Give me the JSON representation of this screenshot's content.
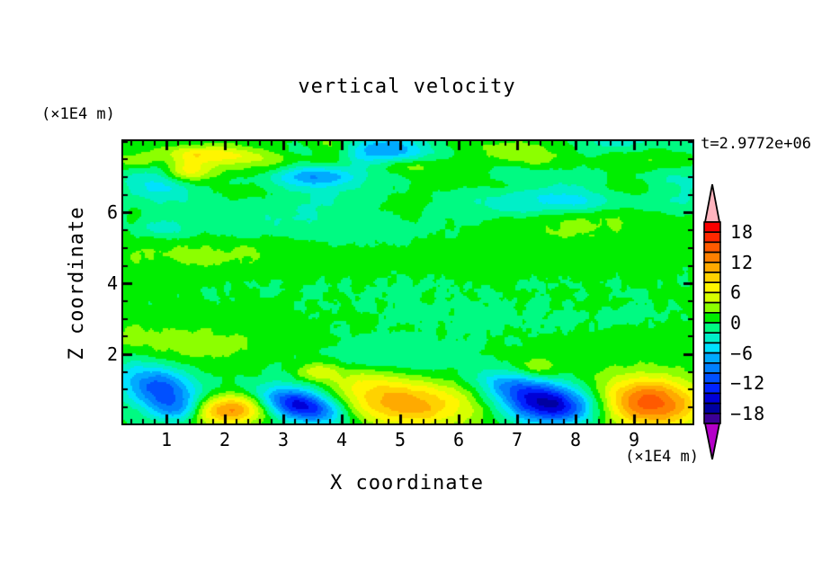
{
  "chart_data": {
    "type": "filled_contour",
    "title": "vertical velocity",
    "xlabel": "X coordinate",
    "ylabel": "Z coordinate",
    "x_unit_label": "(×1E4 m)",
    "z_unit_label": "(×1E4 m)",
    "time_label": "t=2.9772e+06",
    "x_range": [
      0.26,
      10.0
    ],
    "z_range": [
      0.04,
      8.02
    ],
    "x_major_ticks": [
      1,
      2,
      3,
      4,
      5,
      6,
      7,
      8,
      9
    ],
    "x_major_tick_labels": [
      "1",
      "2",
      "3",
      "4",
      "5",
      "6",
      "7",
      "8",
      "9"
    ],
    "x_minor_step": 0.2,
    "z_major_ticks": [
      2,
      4,
      6
    ],
    "z_major_tick_labels": [
      "2",
      "4",
      "6"
    ],
    "z_minor_step": 0.5,
    "grid": false,
    "legend_position": "right-colorbar",
    "levels": {
      "min": -20,
      "max": 20,
      "step": 2
    },
    "colorbar_label_values": [
      18,
      12,
      6,
      0,
      -6,
      -12,
      -18
    ],
    "colorbar_labels": [
      "18",
      "12",
      "6",
      "0",
      "−6",
      "−12",
      "−18"
    ],
    "palette": [
      "#3C0096",
      "#0000A0",
      "#0000D7",
      "#0023FF",
      "#0050FF",
      "#0080FF",
      "#00AAFF",
      "#00E1FF",
      "#00EFC8",
      "#00FA82",
      "#00EE00",
      "#8CFF00",
      "#D7FF00",
      "#FFF500",
      "#FFD200",
      "#FFAA00",
      "#FF8000",
      "#FF5A00",
      "#FF2800",
      "#FA0000"
    ],
    "over_arrow_color": "#FFB4BE",
    "under_arrow_color": "#B400C8",
    "field": {
      "description": "vertical velocity w(x,z); strong convective plumes near bottom boundary, weak banded motion in interior, fine-grained turbulence near top",
      "base": {
        "low": 0.45,
        "high": 0.12,
        "z_split": 1.9,
        "blend_width": 0.45
      },
      "features": [
        {
          "x": 1.0,
          "z": 0.95,
          "sx": 0.42,
          "sz": 0.45,
          "amp": -9.5,
          "tilt": 0.3
        },
        {
          "x": 1.17,
          "z": 0.4,
          "sx": 0.3,
          "sz": 0.24,
          "amp": -5.5,
          "tilt": 0
        },
        {
          "x": 0.52,
          "z": 1.25,
          "sx": 0.42,
          "sz": 0.55,
          "amp": -3.4,
          "tilt": 0.2
        },
        {
          "x": 2.07,
          "z": 0.42,
          "sx": 0.46,
          "sz": 0.3,
          "amp": 12.6,
          "tilt": -0.2
        },
        {
          "x": 3.3,
          "z": 0.55,
          "sx": 0.46,
          "sz": 0.36,
          "amp": -16.5,
          "tilt": 0.55
        },
        {
          "x": 3.58,
          "z": 1.52,
          "sx": 0.24,
          "sz": 0.18,
          "amp": 4.8,
          "tilt": 0
        },
        {
          "x": 5.12,
          "z": 0.58,
          "sx": 0.82,
          "sz": 0.46,
          "amp": 10.8,
          "tilt": 0.15
        },
        {
          "x": 4.35,
          "z": 1.25,
          "sx": 0.5,
          "sz": 0.35,
          "amp": 3.2,
          "tilt": 0.3
        },
        {
          "x": 7.55,
          "z": 0.58,
          "sx": 0.55,
          "sz": 0.4,
          "amp": -17.0,
          "tilt": 0.2
        },
        {
          "x": 6.88,
          "z": 1.12,
          "sx": 0.42,
          "sz": 0.3,
          "amp": -6.5,
          "tilt": 0.35
        },
        {
          "x": 7.35,
          "z": 1.62,
          "sx": 0.3,
          "sz": 0.22,
          "amp": 3.4,
          "tilt": 0
        },
        {
          "x": 9.28,
          "z": 0.62,
          "sx": 0.62,
          "sz": 0.52,
          "amp": 14.8,
          "tilt": 0.1
        },
        {
          "x": 0.9,
          "z": 5.55,
          "sx": 0.28,
          "sz": 0.18,
          "amp": -3.0,
          "tilt": 0
        },
        {
          "x": 4.55,
          "z": 7.55,
          "sx": 0.85,
          "sz": 0.26,
          "amp": -5.2,
          "tilt": 0
        },
        {
          "x": 7.8,
          "z": 6.35,
          "sx": 0.95,
          "sz": 0.28,
          "amp": -4.6,
          "tilt": 0
        },
        {
          "x": 1.35,
          "z": 7.15,
          "sx": 0.3,
          "sz": 0.22,
          "amp": 6.5,
          "tilt": 0
        },
        {
          "x": 6.9,
          "z": 7.75,
          "sx": 0.48,
          "sz": 0.24,
          "amp": 5.2,
          "tilt": 0
        },
        {
          "x": 2.75,
          "z": 7.2,
          "sx": 0.5,
          "sz": 0.3,
          "amp": 4.5,
          "tilt": 0
        },
        {
          "x": 0.95,
          "z": 6.85,
          "sx": 0.45,
          "sz": 0.4,
          "amp": -5.0,
          "tilt": 0
        },
        {
          "x": 3.6,
          "z": 6.9,
          "sx": 0.5,
          "sz": 0.35,
          "amp": -4.2,
          "tilt": 0
        }
      ],
      "noise": {
        "seed": 1234,
        "top_count": 46,
        "top_amp": [
          1.3,
          4.2
        ],
        "top_z": [
          5.9,
          8.1
        ],
        "streak_count": 16,
        "streak_amp": [
          0.75,
          1.55
        ],
        "streak_z": [
          1.9,
          6.3
        ],
        "streak_tilt": 0.3,
        "jitter_amp": [
          0.45,
          0.22
        ]
      }
    }
  }
}
